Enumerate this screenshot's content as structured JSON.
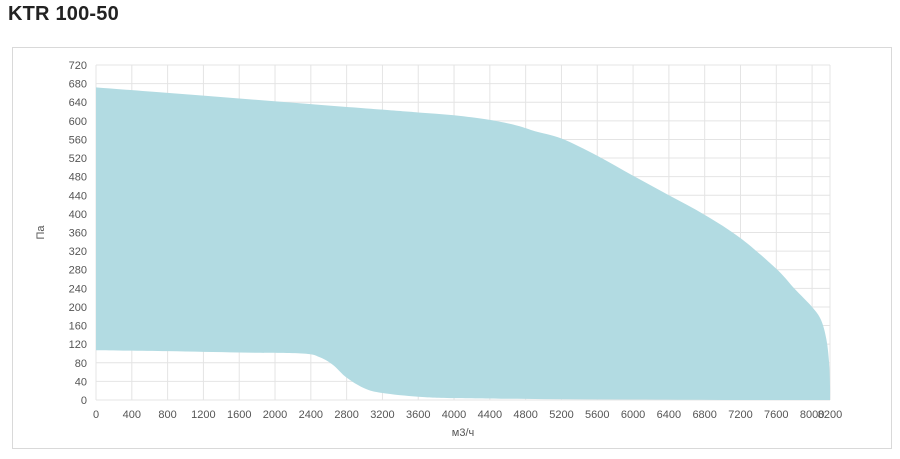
{
  "page": {
    "title": "KTR 100-50"
  },
  "chart_data": {
    "type": "area",
    "title": "KTR 100-50",
    "xlabel": "м3/ч",
    "ylabel": "Па",
    "xlim": [
      0,
      8200
    ],
    "ylim": [
      0,
      720
    ],
    "x_ticks": [
      0,
      400,
      800,
      1200,
      1600,
      2000,
      2400,
      2800,
      3200,
      3600,
      4000,
      4400,
      4800,
      5200,
      5600,
      6000,
      6400,
      6800,
      7200,
      7600,
      8000,
      8200
    ],
    "y_ticks": [
      0,
      40,
      80,
      120,
      160,
      200,
      240,
      280,
      320,
      360,
      400,
      440,
      480,
      520,
      560,
      600,
      640,
      680,
      720
    ],
    "grid": true,
    "fill_color": "#b2dbe2",
    "upper_boundary": [
      {
        "x": 0,
        "y": 672
      },
      {
        "x": 800,
        "y": 660
      },
      {
        "x": 1600,
        "y": 648
      },
      {
        "x": 2400,
        "y": 636
      },
      {
        "x": 3200,
        "y": 624
      },
      {
        "x": 3600,
        "y": 618
      },
      {
        "x": 4000,
        "y": 612
      },
      {
        "x": 4400,
        "y": 602
      },
      {
        "x": 4700,
        "y": 590
      },
      {
        "x": 4900,
        "y": 578
      },
      {
        "x": 5200,
        "y": 562
      },
      {
        "x": 5600,
        "y": 525
      },
      {
        "x": 6000,
        "y": 482
      },
      {
        "x": 6400,
        "y": 440
      },
      {
        "x": 6800,
        "y": 398
      },
      {
        "x": 7200,
        "y": 348
      },
      {
        "x": 7600,
        "y": 282
      },
      {
        "x": 7800,
        "y": 240
      },
      {
        "x": 8000,
        "y": 200
      },
      {
        "x": 8100,
        "y": 172
      },
      {
        "x": 8160,
        "y": 130
      },
      {
        "x": 8190,
        "y": 80
      },
      {
        "x": 8200,
        "y": 30
      },
      {
        "x": 8200,
        "y": 0
      }
    ],
    "lower_boundary": [
      {
        "x": 0,
        "y": 107
      },
      {
        "x": 800,
        "y": 105
      },
      {
        "x": 1600,
        "y": 102
      },
      {
        "x": 2300,
        "y": 100
      },
      {
        "x": 2500,
        "y": 92
      },
      {
        "x": 2650,
        "y": 75
      },
      {
        "x": 2800,
        "y": 48
      },
      {
        "x": 3000,
        "y": 25
      },
      {
        "x": 3200,
        "y": 15
      },
      {
        "x": 3600,
        "y": 7
      },
      {
        "x": 4000,
        "y": 4
      },
      {
        "x": 5000,
        "y": 2
      },
      {
        "x": 6000,
        "y": 1
      },
      {
        "x": 7000,
        "y": 0
      },
      {
        "x": 8200,
        "y": 0
      }
    ]
  }
}
